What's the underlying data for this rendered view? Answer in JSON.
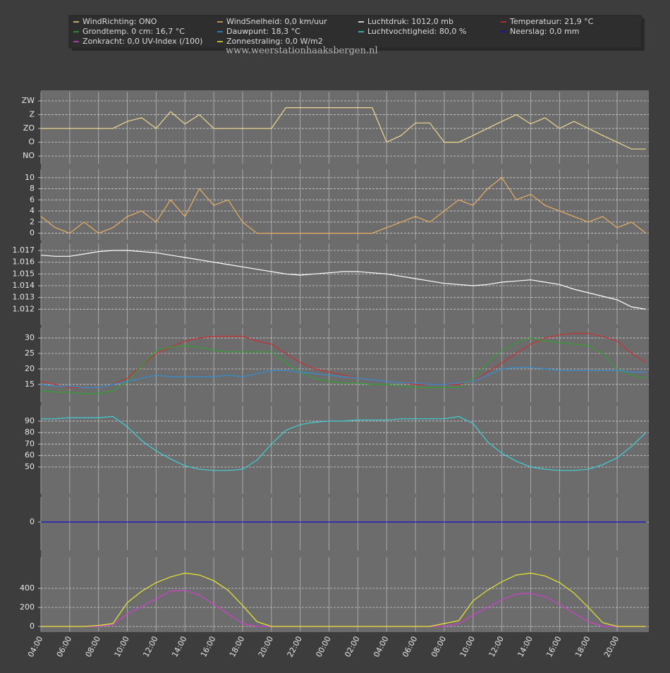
{
  "watermark": "www.weerstationhaaksbergen.nl",
  "x_axis": {
    "xlim": [
      0,
      42.2
    ],
    "x": [
      0,
      1,
      2,
      3,
      4,
      5,
      6,
      7,
      8,
      9,
      10,
      11,
      12,
      13,
      14,
      15,
      16,
      17,
      18,
      19,
      20,
      21,
      22,
      23,
      24,
      25,
      26,
      27,
      28,
      29,
      30,
      31,
      32,
      33,
      34,
      35,
      36,
      37,
      38,
      39,
      40,
      41,
      42
    ],
    "xticks": [
      {
        "value": 0,
        "label": "04:00"
      },
      {
        "value": 2,
        "label": "06:00"
      },
      {
        "value": 4,
        "label": "08:00"
      },
      {
        "value": 6,
        "label": "10:00"
      },
      {
        "value": 8,
        "label": "12:00"
      },
      {
        "value": 10,
        "label": "14:00"
      },
      {
        "value": 12,
        "label": "16:00"
      },
      {
        "value": 14,
        "label": "18:00"
      },
      {
        "value": 16,
        "label": "20:00"
      },
      {
        "value": 18,
        "label": "22:00"
      },
      {
        "value": 20,
        "label": "00:00"
      },
      {
        "value": 22,
        "label": "02:00"
      },
      {
        "value": 24,
        "label": "04:00"
      },
      {
        "value": 26,
        "label": "06:00"
      },
      {
        "value": 28,
        "label": "08:00"
      },
      {
        "value": 30,
        "label": "10:00"
      },
      {
        "value": 32,
        "label": "12:00"
      },
      {
        "value": 34,
        "label": "14:00"
      },
      {
        "value": 36,
        "label": "16:00"
      },
      {
        "value": 38,
        "label": "18:00"
      },
      {
        "value": 40,
        "label": "20:00"
      }
    ]
  },
  "chart_data": [
    {
      "type": "line",
      "ylim": [
        20,
        255
      ],
      "grid": true,
      "yticks": [
        {
          "value": 45,
          "label": "NO"
        },
        {
          "value": 90,
          "label": "O"
        },
        {
          "value": 135,
          "label": "ZO"
        },
        {
          "value": 180,
          "label": "Z"
        },
        {
          "value": 225,
          "label": "ZW"
        }
      ],
      "series": [
        {
          "name": "WindRichting: ONO",
          "color": "#f0d890",
          "values": [
            135,
            135,
            135,
            135,
            135,
            135,
            158,
            170,
            135,
            190,
            150,
            180,
            135,
            135,
            135,
            135,
            135,
            203,
            203,
            203,
            203,
            203,
            203,
            203,
            90,
            112,
            153,
            153,
            90,
            90,
            112,
            135,
            158,
            180,
            150,
            170,
            135,
            158,
            135,
            112,
            90,
            68,
            68
          ]
        }
      ]
    },
    {
      "type": "line",
      "ylim": [
        -1.2,
        11.5
      ],
      "grid": true,
      "yticks": [
        0,
        2,
        4,
        6,
        8,
        10
      ],
      "series": [
        {
          "name": "WindSnelheid: 0,0 km/uur",
          "color": "#e8b060",
          "values": [
            3,
            1,
            0,
            2,
            0,
            1,
            3,
            4,
            2,
            6,
            3,
            8,
            5,
            6,
            2,
            0,
            0,
            0,
            0,
            0,
            0,
            0,
            0,
            0,
            1,
            2,
            3,
            2,
            4,
            6,
            5,
            8,
            10,
            6,
            7,
            5,
            4,
            3,
            2,
            3,
            1,
            2,
            0
          ]
        }
      ]
    },
    {
      "type": "line",
      "ylim": [
        1.0107,
        1.0176
      ],
      "grid": true,
      "yticks": [
        1.012,
        1.013,
        1.014,
        1.015,
        1.016,
        1.017
      ],
      "series": [
        {
          "name": "Luchtdruk: 1012,0 mb",
          "color": "#ffffff",
          "values": [
            1.0166,
            1.0165,
            1.0165,
            1.0167,
            1.0169,
            1.017,
            1.017,
            1.0169,
            1.0168,
            1.0166,
            1.0164,
            1.0162,
            1.016,
            1.0158,
            1.0156,
            1.0154,
            1.0152,
            1.015,
            1.0149,
            1.015,
            1.0151,
            1.0152,
            1.0152,
            1.0151,
            1.015,
            1.0148,
            1.0146,
            1.0144,
            1.0142,
            1.0141,
            1.014,
            1.0141,
            1.0143,
            1.0144,
            1.0145,
            1.0143,
            1.0141,
            1.0137,
            1.0134,
            1.0131,
            1.0128,
            1.0122,
            1.012
          ]
        }
      ]
    },
    {
      "type": "line",
      "ylim": [
        9.3,
        33.2
      ],
      "grid": true,
      "yticks": [
        15,
        20,
        25,
        30
      ],
      "series": [
        {
          "name": "Temperatuur: 21,9 °C",
          "color": "#c83030",
          "values": [
            16,
            15,
            14,
            14,
            14,
            15,
            17,
            21,
            25,
            27,
            29,
            30,
            30.5,
            30.5,
            30.5,
            29,
            28,
            25,
            22,
            20,
            19,
            18,
            17,
            16.5,
            16,
            15.5,
            15,
            15,
            15,
            15,
            16,
            19,
            22,
            25,
            28,
            30,
            31,
            31.5,
            31.5,
            30.5,
            29,
            25,
            22
          ]
        },
        {
          "name": "Grondtemp. 0 cm: 16,7 °C",
          "color": "#30a030",
          "values": [
            13,
            12.5,
            12.5,
            12,
            12,
            13,
            16,
            21,
            26,
            27,
            27.5,
            27,
            26,
            25.5,
            25.5,
            25.5,
            25.5,
            22,
            19,
            17,
            16,
            15.5,
            15.5,
            15,
            15,
            14.5,
            14,
            14,
            14,
            14,
            17,
            22,
            26,
            28.5,
            30,
            29,
            28.5,
            28,
            27.5,
            25,
            20,
            18,
            17
          ]
        },
        {
          "name": "Dauwpunt: 18,3 °C",
          "color": "#3090d8",
          "values": [
            15,
            14.5,
            14.5,
            14,
            14,
            15,
            16,
            17,
            18,
            17.5,
            17.5,
            17.5,
            17.5,
            18,
            17.5,
            18.5,
            19.5,
            19.5,
            19,
            18.5,
            18,
            17.5,
            17,
            16.5,
            16,
            15.5,
            15.5,
            15,
            15,
            15.5,
            16,
            18,
            20,
            20.5,
            20.5,
            20,
            19.5,
            19.5,
            19.5,
            19.5,
            19.5,
            19,
            19
          ]
        }
      ]
    },
    {
      "type": "line",
      "ylim": [
        26.6,
        103.5
      ],
      "grid": true,
      "yticks": [
        50,
        60,
        70,
        80,
        90
      ],
      "series": [
        {
          "name": "Luchtvochtigheid: 80,0 %",
          "color": "#40d0d8",
          "values": [
            92,
            92,
            93,
            93,
            93,
            94,
            85,
            73,
            64,
            57,
            51,
            48,
            47,
            47,
            48,
            56,
            70,
            82,
            87,
            89,
            90,
            90,
            91,
            91,
            91,
            92,
            92,
            92,
            92,
            94,
            88,
            72,
            62,
            55,
            50,
            48,
            47,
            47,
            48,
            52,
            58,
            68,
            80
          ]
        }
      ]
    },
    {
      "type": "line",
      "ylim": [
        -1.14,
        1
      ],
      "grid": true,
      "yticks": [
        0
      ],
      "series": [
        {
          "name": "Neerslag: 0,0 mm",
          "color": "#1010d0",
          "values": [
            0,
            0,
            0,
            0,
            0,
            0,
            0,
            0,
            0,
            0,
            0,
            0,
            0,
            0,
            0,
            0,
            0,
            0,
            0,
            0,
            0,
            0,
            0,
            0,
            0,
            0,
            0,
            0,
            0,
            0,
            0,
            0,
            0,
            0,
            0,
            0,
            0,
            0,
            0,
            0,
            0,
            0,
            0
          ]
        }
      ]
    },
    {
      "type": "line",
      "ylim": [
        -52,
        726
      ],
      "grid": true,
      "yticks": [
        0,
        200,
        400
      ],
      "series": [
        {
          "name": "Zonkracht: 0,0 UV-Index (/100)",
          "color": "#d040d0",
          "values": [
            0,
            0,
            0,
            0,
            0,
            20,
            130,
            210,
            290,
            370,
            380,
            330,
            230,
            130,
            30,
            0,
            0,
            0,
            0,
            0,
            0,
            0,
            0,
            0,
            0,
            0,
            0,
            0,
            0,
            30,
            120,
            200,
            280,
            340,
            350,
            310,
            230,
            140,
            50,
            0,
            0,
            0,
            0
          ]
        },
        {
          "name": "Zonnestraling: 0,0 W/m2",
          "color": "#e8e830",
          "values": [
            0,
            0,
            0,
            0,
            10,
            30,
            250,
            370,
            460,
            520,
            560,
            540,
            480,
            380,
            220,
            50,
            0,
            0,
            0,
            0,
            0,
            0,
            0,
            0,
            0,
            0,
            0,
            0,
            30,
            60,
            270,
            380,
            470,
            540,
            560,
            530,
            460,
            350,
            200,
            40,
            0,
            0,
            0
          ]
        }
      ]
    }
  ]
}
